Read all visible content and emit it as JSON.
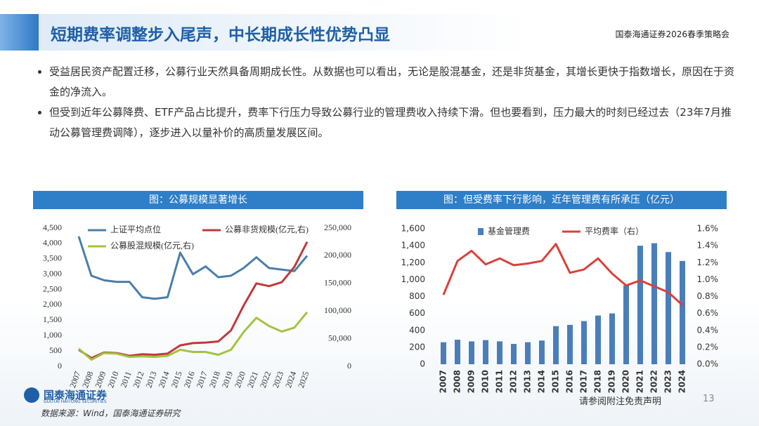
{
  "header": {
    "title": "短期费率调整步入尾声，中长期成长性优势凸显",
    "event": "国泰海通证券2026春季策略会"
  },
  "bullets": [
    "受益居民资产配置迁移，公募行业天然具备周期成长性。从数据也可以看出，无论是股混基金，还是非货基金，其增长更快于指数增长，原因在于资金的净流入。",
    "但受到近年公募降费、ETF产品占比提升，费率下行压力导致公募行业的管理费收入持续下滑。但也要看到，压力最大的时刻已经过去（23年7月推动公募管理费调降），逐步进入以量补价的高质量发展区间。"
  ],
  "footer": {
    "logo": "国泰海通证券",
    "logo_en": "GUOTAI HAITONG SECURITIES",
    "source": "数据来源：Wind，国泰海通证券研究",
    "disclaimer": "请参阅附注免责声明",
    "page": "13"
  },
  "chart_data": [
    {
      "type": "line",
      "title": "图：公募规模显著增长",
      "categories": [
        "2007",
        "2008",
        "2009",
        "2010",
        "2011",
        "2012",
        "2013",
        "2014",
        "2015",
        "2016",
        "2017",
        "2018",
        "2019",
        "2020",
        "2021",
        "2022",
        "2023",
        "2024",
        "2025"
      ],
      "ylim": [
        0,
        4500
      ],
      "yticks": [
        0,
        500,
        {
          "value": 1000,
          "label": "1,000"
        },
        {
          "value": 1500,
          "label": "1,500"
        },
        {
          "value": 2000,
          "label": "2,000"
        },
        {
          "value": 2500,
          "label": "2,500"
        },
        {
          "value": 3000,
          "label": "3,000"
        },
        {
          "value": 3500,
          "label": "3,500"
        },
        {
          "value": 4000,
          "label": "4,000"
        },
        {
          "value": 4500,
          "label": "4,500"
        }
      ],
      "y2lim": [
        0,
        250000
      ],
      "y2ticks": [
        0,
        {
          "value": 50000,
          "label": "50,000"
        },
        {
          "value": 100000,
          "label": "100,000"
        },
        {
          "value": 150000,
          "label": "150,000"
        },
        {
          "value": 200000,
          "label": "200,000"
        },
        {
          "value": 250000,
          "label": "250,000"
        }
      ],
      "series": [
        {
          "name": "上证平均点位",
          "color": "#4a7eab",
          "values": [
            4230,
            2950,
            2800,
            2750,
            2750,
            2250,
            2200,
            2250,
            3700,
            3000,
            3250,
            2900,
            2950,
            3200,
            3550,
            3200,
            3150,
            3100,
            3600
          ]
        },
        {
          "name": "公募非货规模(亿元,右)",
          "color": "#c0393b",
          "axis": "y2",
          "values": [
            30000,
            15000,
            25000,
            24000,
            19000,
            22000,
            21000,
            23000,
            38000,
            42000,
            43000,
            45000,
            65000,
            110000,
            150000,
            145000,
            152000,
            180000,
            225000
          ]
        },
        {
          "name": "公募股混规模(亿元,右)",
          "color": "#a3c441",
          "axis": "y2",
          "values": [
            32000,
            12000,
            24000,
            23000,
            17000,
            18000,
            17000,
            19000,
            30000,
            26000,
            26000,
            21000,
            30000,
            62000,
            88000,
            73000,
            63000,
            70000,
            98000
          ]
        }
      ]
    },
    {
      "type": "bar",
      "title": "图：但受费率下行影响，近年管理费有所承压（亿元）",
      "categories": [
        "2007",
        "2008",
        "2009",
        "2010",
        "2011",
        "2012",
        "2013",
        "2014",
        "2015",
        "2016",
        "2017",
        "2018",
        "2019",
        "2020",
        "2021",
        "2022",
        "2023",
        "2024"
      ],
      "ylim": [
        0,
        1600
      ],
      "yticks": [
        0,
        200,
        400,
        600,
        800,
        {
          "value": 1000,
          "label": "1,000"
        },
        {
          "value": 1200,
          "label": "1,200"
        },
        {
          "value": 1400,
          "label": "1,400"
        },
        {
          "value": 1600,
          "label": "1,600"
        }
      ],
      "y2lim": [
        0,
        1.6
      ],
      "y2ticks": [
        {
          "value": 0,
          "label": "0.0%"
        },
        {
          "value": 0.2,
          "label": "0.2%"
        },
        {
          "value": 0.4,
          "label": "0.4%"
        },
        {
          "value": 0.6,
          "label": "0.6%"
        },
        {
          "value": 0.8,
          "label": "0.8%"
        },
        {
          "value": 1.0,
          "label": "1.0%"
        },
        {
          "value": 1.2,
          "label": "1.2%"
        },
        {
          "value": 1.4,
          "label": "1.4%"
        },
        {
          "value": 1.6,
          "label": "1.6%"
        }
      ],
      "series": [
        {
          "name": "基金管理费",
          "type": "bar",
          "color": "#4a7ebb",
          "values": [
            260,
            290,
            270,
            285,
            270,
            240,
            260,
            280,
            450,
            465,
            510,
            575,
            600,
            930,
            1400,
            1430,
            1325,
            1220
          ]
        },
        {
          "name": "平均费率（右）",
          "type": "line",
          "axis": "y2",
          "color": "#d9413a",
          "values": [
            0.82,
            1.22,
            1.34,
            1.18,
            1.25,
            1.17,
            1.19,
            1.22,
            1.42,
            1.08,
            1.12,
            1.25,
            1.07,
            0.93,
            0.99,
            0.92,
            0.85,
            0.7
          ]
        }
      ]
    }
  ]
}
